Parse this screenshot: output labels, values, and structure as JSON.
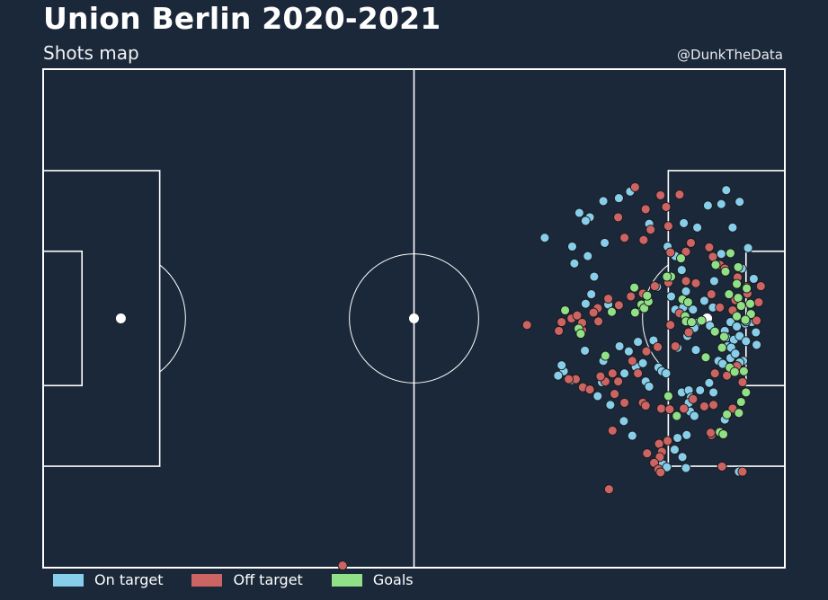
{
  "title": "Union Berlin 2020-2021",
  "subtitle": "Shots map",
  "credit": "@DunkTheData",
  "legend": [
    {
      "label": "On target",
      "key": "on_target"
    },
    {
      "label": "Off target",
      "key": "off_target"
    },
    {
      "label": "Goals",
      "key": "goals"
    }
  ],
  "colors": {
    "background": "#1b2839",
    "pitch_lines": "#ffffff",
    "on_target": "#87ceeb",
    "off_target": "#cd6464",
    "goals": "#90e088"
  },
  "chart_data": {
    "type": "scatter",
    "title": "Union Berlin 2020-2021",
    "subtitle": "Shots map",
    "xlim": [
      0,
      105
    ],
    "ylim": [
      0,
      68
    ],
    "grid": false,
    "legend_placement": "bottom-left",
    "series": [
      {
        "name": "On target",
        "key": "on_target",
        "points": [
          [
            96.7,
            16.5
          ],
          [
            98.6,
            18.1
          ],
          [
            96.0,
            18.4
          ],
          [
            94.1,
            18.6
          ],
          [
            92.6,
            21.6
          ],
          [
            90.7,
            21.0
          ],
          [
            99.8,
            24.4
          ],
          [
            100.6,
            28.6
          ],
          [
            98.9,
            27.2
          ],
          [
            97.6,
            21.6
          ],
          [
            96.0,
            25.2
          ],
          [
            95.0,
            28.9
          ],
          [
            89.5,
            25.5
          ],
          [
            88.4,
            24.2
          ],
          [
            85.8,
            21.1
          ],
          [
            83.1,
            16.7
          ],
          [
            81.5,
            17.6
          ],
          [
            79.3,
            18.0
          ],
          [
            75.9,
            19.6
          ],
          [
            77.4,
            20.2
          ],
          [
            76.8,
            20.7
          ],
          [
            71.0,
            23.0
          ],
          [
            74.9,
            24.2
          ],
          [
            79.5,
            23.7
          ],
          [
            77.1,
            25.5
          ],
          [
            75.2,
            26.5
          ],
          [
            78.0,
            28.3
          ],
          [
            77.6,
            30.7
          ],
          [
            76.8,
            32.0
          ],
          [
            80.0,
            32.1
          ],
          [
            84.8,
            32.5
          ],
          [
            85.7,
            31.8
          ],
          [
            86.9,
            29.7
          ],
          [
            88.9,
            28.3
          ],
          [
            90.4,
            27.4
          ],
          [
            91.0,
            30.3
          ],
          [
            91.0,
            32.3
          ],
          [
            92.0,
            32.8
          ],
          [
            92.5,
            34.6
          ],
          [
            94.8,
            32.5
          ],
          [
            96.5,
            35.7
          ],
          [
            97.3,
            34.5
          ],
          [
            96.7,
            36.6
          ],
          [
            97.8,
            36.9
          ],
          [
            98.2,
            35.1
          ],
          [
            99.4,
            34.7
          ],
          [
            100.3,
            34.5
          ],
          [
            99.5,
            34.4
          ],
          [
            98.6,
            36.4
          ],
          [
            94.4,
            35.0
          ],
          [
            92.2,
            35.3
          ],
          [
            93.6,
            31.6
          ],
          [
            88.9,
            31.0
          ],
          [
            89.5,
            32.8
          ],
          [
            90.6,
            32.5
          ],
          [
            92.4,
            38.3
          ],
          [
            91.2,
            36.4
          ],
          [
            89.8,
            38.0
          ],
          [
            86.4,
            37.0
          ],
          [
            84.2,
            37.2
          ],
          [
            82.9,
            38.5
          ],
          [
            81.6,
            37.8
          ],
          [
            79.3,
            39.8
          ],
          [
            77.5,
            43.7
          ],
          [
            74.9,
            42.4
          ],
          [
            73.7,
            41.2
          ],
          [
            73.4,
            40.4
          ],
          [
            72.9,
            41.8
          ],
          [
            76.7,
            38.4
          ],
          [
            79.1,
            42.7
          ],
          [
            78.5,
            44.6
          ],
          [
            80.3,
            45.8
          ],
          [
            82.3,
            41.5
          ],
          [
            83.9,
            40.6
          ],
          [
            84.9,
            40.1
          ],
          [
            85.3,
            42.6
          ],
          [
            85.8,
            43.3
          ],
          [
            87.1,
            40.7
          ],
          [
            87.6,
            41.2
          ],
          [
            88.2,
            41.5
          ],
          [
            90.4,
            44.1
          ],
          [
            91.4,
            43.8
          ],
          [
            91.7,
            44.8
          ],
          [
            93.0,
            43.8
          ],
          [
            94.3,
            42.8
          ],
          [
            94.9,
            44.1
          ],
          [
            95.6,
            39.8
          ],
          [
            96.2,
            40.2
          ],
          [
            97.3,
            39.4
          ],
          [
            98.2,
            41.2
          ],
          [
            96.9,
            37.8
          ],
          [
            97.4,
            38.0
          ],
          [
            98.0,
            38.8
          ],
          [
            99.5,
            37.1
          ],
          [
            100.9,
            35.9
          ],
          [
            101.0,
            37.6
          ],
          [
            99.1,
            39.8
          ],
          [
            98.6,
            40.0
          ],
          [
            91.4,
            45.5
          ],
          [
            91.6,
            46.7
          ],
          [
            92.2,
            47.3
          ],
          [
            96.5,
            47.8
          ],
          [
            91.1,
            49.9
          ],
          [
            89.8,
            50.3
          ],
          [
            89.4,
            51.9
          ],
          [
            90.5,
            52.9
          ],
          [
            87.7,
            53.9
          ],
          [
            88.3,
            54.3
          ],
          [
            91.0,
            54.4
          ],
          [
            98.5,
            54.9
          ],
          [
            83.4,
            50.0
          ],
          [
            82.2,
            48.0
          ]
        ]
      },
      {
        "name": "Off target",
        "key": "off_target",
        "points": [
          [
            83.8,
            16.1
          ],
          [
            87.4,
            17.2
          ],
          [
            90.1,
            17.1
          ],
          [
            88.2,
            18.8
          ],
          [
            85.3,
            19.1
          ],
          [
            81.4,
            20.2
          ],
          [
            88.5,
            21.4
          ],
          [
            86.0,
            21.9
          ],
          [
            82.3,
            23.0
          ],
          [
            85.0,
            23.3
          ],
          [
            88.8,
            25.0
          ],
          [
            91.7,
            23.7
          ],
          [
            91.0,
            24.9
          ],
          [
            94.3,
            24.3
          ],
          [
            94.8,
            25.6
          ],
          [
            95.8,
            26.7
          ],
          [
            96.5,
            27.2
          ],
          [
            98.3,
            28.4
          ],
          [
            99.6,
            29.7
          ],
          [
            101.6,
            29.6
          ],
          [
            99.7,
            30.6
          ],
          [
            101.3,
            31.8
          ],
          [
            98.0,
            31.5
          ],
          [
            94.6,
            30.7
          ],
          [
            92.4,
            29.2
          ],
          [
            91.0,
            28.9
          ],
          [
            88.5,
            29.1
          ],
          [
            86.6,
            29.6
          ],
          [
            84.9,
            30.6
          ],
          [
            83.2,
            31.0
          ],
          [
            81.5,
            32.2
          ],
          [
            80.0,
            31.3
          ],
          [
            78.5,
            32.6
          ],
          [
            77.9,
            33.2
          ],
          [
            78.6,
            34.4
          ],
          [
            74.8,
            34.0
          ],
          [
            73.4,
            34.5
          ],
          [
            76.3,
            35.6
          ],
          [
            73.0,
            35.7
          ],
          [
            75.6,
            33.6
          ],
          [
            76.3,
            34.6
          ],
          [
            68.5,
            34.9
          ],
          [
            88.8,
            34.9
          ],
          [
            90.1,
            33.3
          ],
          [
            95.8,
            32.5
          ],
          [
            97.6,
            32.9
          ],
          [
            100.3,
            33.5
          ],
          [
            101.0,
            34.3
          ],
          [
            91.4,
            35.9
          ],
          [
            89.5,
            37.8
          ],
          [
            87.0,
            37.9
          ],
          [
            85.4,
            38.5
          ],
          [
            83.4,
            39.8
          ],
          [
            84.2,
            41.5
          ],
          [
            81.4,
            42.6
          ],
          [
            80.6,
            41.5
          ],
          [
            79.6,
            42.6
          ],
          [
            78.9,
            41.9
          ],
          [
            75.4,
            42.3
          ],
          [
            74.4,
            42.3
          ],
          [
            76.4,
            43.4
          ],
          [
            77.4,
            43.7
          ],
          [
            80.9,
            44.3
          ],
          [
            82.3,
            45.5
          ],
          [
            84.9,
            45.5
          ],
          [
            85.3,
            45.9
          ],
          [
            87.5,
            46.3
          ],
          [
            88.7,
            46.4
          ],
          [
            90.7,
            46.3
          ],
          [
            92.0,
            45.0
          ],
          [
            93.6,
            46.0
          ],
          [
            94.9,
            45.8
          ],
          [
            95.1,
            41.5
          ],
          [
            96.8,
            41.8
          ],
          [
            98.2,
            40.5
          ],
          [
            99.0,
            42.7
          ],
          [
            99.4,
            44.1
          ],
          [
            97.6,
            46.3
          ],
          [
            94.6,
            49.9
          ],
          [
            94.5,
            49.6
          ],
          [
            88.4,
            50.7
          ],
          [
            87.2,
            51.1
          ],
          [
            87.6,
            52.2
          ],
          [
            87.3,
            52.9
          ],
          [
            85.5,
            52.4
          ],
          [
            86.5,
            53.7
          ],
          [
            87.1,
            54.6
          ],
          [
            87.4,
            55.0
          ],
          [
            96.1,
            54.2
          ],
          [
            99.0,
            54.9
          ],
          [
            80.6,
            49.3
          ],
          [
            80.1,
            57.3
          ],
          [
            42.4,
            67.7
          ]
        ]
      },
      {
        "name": "Goals",
        "key": "goals",
        "points": [
          [
            95.2,
            26.7
          ],
          [
            97.3,
            25.1
          ],
          [
            96.6,
            27.6
          ],
          [
            98.4,
            27.0
          ],
          [
            98.2,
            29.3
          ],
          [
            97.1,
            30.7
          ],
          [
            98.4,
            31.2
          ],
          [
            98.8,
            32.3
          ],
          [
            100.1,
            32.0
          ],
          [
            100.2,
            33.4
          ],
          [
            98.2,
            33.7
          ],
          [
            99.4,
            34.2
          ],
          [
            99.6,
            29.9
          ],
          [
            90.3,
            25.8
          ],
          [
            88.9,
            28.3
          ],
          [
            88.3,
            28.3
          ],
          [
            90.5,
            31.4
          ],
          [
            91.3,
            31.8
          ],
          [
            90.9,
            33.7
          ],
          [
            91.0,
            34.4
          ],
          [
            91.8,
            34.5
          ],
          [
            93.2,
            34.3
          ],
          [
            95.1,
            35.8
          ],
          [
            96.4,
            36.5
          ],
          [
            96.1,
            38.0
          ],
          [
            93.8,
            39.3
          ],
          [
            97.2,
            40.7
          ],
          [
            97.9,
            41.3
          ],
          [
            99.2,
            41.2
          ],
          [
            99.5,
            44.1
          ],
          [
            98.8,
            45.4
          ],
          [
            98.5,
            46.9
          ],
          [
            96.8,
            47.1
          ],
          [
            95.8,
            49.5
          ],
          [
            96.3,
            49.8
          ],
          [
            89.7,
            47.3
          ],
          [
            88.5,
            44.6
          ],
          [
            79.6,
            39.1
          ],
          [
            75.8,
            35.4
          ],
          [
            76.1,
            36.1
          ],
          [
            83.8,
            33.2
          ],
          [
            84.7,
            32.1
          ],
          [
            85.1,
            32.6
          ],
          [
            85.7,
            31.7
          ],
          [
            85.5,
            30.9
          ],
          [
            83.7,
            29.8
          ],
          [
            80.5,
            33.1
          ],
          [
            73.9,
            32.9
          ]
        ]
      }
    ]
  }
}
